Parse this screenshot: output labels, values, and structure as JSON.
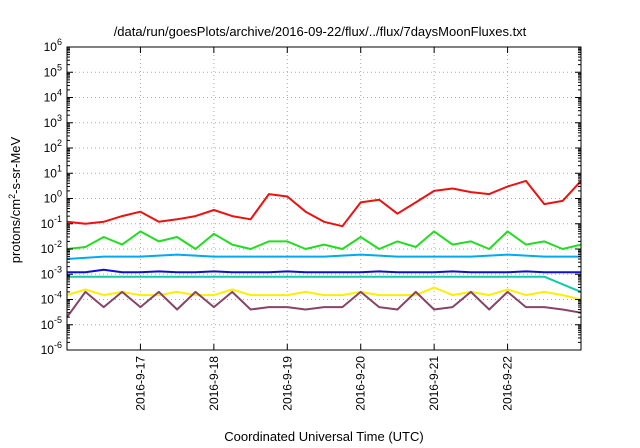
{
  "chart_data": {
    "type": "line",
    "title": "/data/run/goesPlots/archive/2016-09-22/flux/../flux/7daysMoonFluxes.txt",
    "xlabel": "Coordinated Universal Time (UTC)",
    "ylabel_parts": [
      "protons/cm",
      "2",
      "-s-sr-MeV"
    ],
    "yscale": "log",
    "ylim": [
      1e-06,
      1000000.0
    ],
    "y_ticks": [
      {
        "base": "10",
        "exp": "-6"
      },
      {
        "base": "10",
        "exp": "-5"
      },
      {
        "base": "10",
        "exp": "-4"
      },
      {
        "base": "10",
        "exp": "-3"
      },
      {
        "base": "10",
        "exp": "-2"
      },
      {
        "base": "10",
        "exp": "-1"
      },
      {
        "base": "10",
        "exp": "0"
      },
      {
        "base": "10",
        "exp": "1"
      },
      {
        "base": "10",
        "exp": "2"
      },
      {
        "base": "10",
        "exp": "3"
      },
      {
        "base": "10",
        "exp": "4"
      },
      {
        "base": "10",
        "exp": "5"
      },
      {
        "base": "10",
        "exp": "6"
      }
    ],
    "x_ticks": [
      "2016-9-17",
      "2016-9-18",
      "2016-9-19",
      "2016-9-20",
      "2016-9-21",
      "2016-9-22"
    ],
    "xlim": [
      "2016-09-16T00:00",
      "2016-09-23T00:00"
    ],
    "grid": true,
    "series": [
      {
        "color": "#ee1111",
        "x": [
          "2016-09-16T00:00",
          "2016-09-16T06:00",
          "2016-09-16T12:00",
          "2016-09-16T18:00",
          "2016-09-17T00:00",
          "2016-09-17T06:00",
          "2016-09-17T12:00",
          "2016-09-17T18:00",
          "2016-09-18T00:00",
          "2016-09-18T06:00",
          "2016-09-18T12:00",
          "2016-09-18T18:00",
          "2016-09-19T00:00",
          "2016-09-19T06:00",
          "2016-09-19T12:00",
          "2016-09-19T18:00",
          "2016-09-20T00:00",
          "2016-09-20T06:00",
          "2016-09-20T12:00",
          "2016-09-20T18:00",
          "2016-09-21T00:00",
          "2016-09-21T06:00",
          "2016-09-21T12:00",
          "2016-09-21T18:00",
          "2016-09-22T00:00",
          "2016-09-22T06:00",
          "2016-09-22T12:00",
          "2016-09-22T18:00",
          "2016-09-23T00:00"
        ],
        "values": [
          0.12,
          0.1,
          0.12,
          0.2,
          0.3,
          0.12,
          0.15,
          0.2,
          0.35,
          0.2,
          0.15,
          1.5,
          1.2,
          0.3,
          0.12,
          0.08,
          0.7,
          0.9,
          0.25,
          0.7,
          2.0,
          2.5,
          1.8,
          1.5,
          3.0,
          5.0,
          0.6,
          0.8,
          5.0
        ]
      },
      {
        "color": "#22dd22",
        "x": [
          "2016-09-16T00:00",
          "2016-09-16T06:00",
          "2016-09-16T12:00",
          "2016-09-16T18:00",
          "2016-09-17T00:00",
          "2016-09-17T06:00",
          "2016-09-17T12:00",
          "2016-09-17T18:00",
          "2016-09-18T00:00",
          "2016-09-18T06:00",
          "2016-09-18T12:00",
          "2016-09-18T18:00",
          "2016-09-19T00:00",
          "2016-09-19T06:00",
          "2016-09-19T12:00",
          "2016-09-19T18:00",
          "2016-09-20T00:00",
          "2016-09-20T06:00",
          "2016-09-20T12:00",
          "2016-09-20T18:00",
          "2016-09-21T00:00",
          "2016-09-21T06:00",
          "2016-09-21T12:00",
          "2016-09-21T18:00",
          "2016-09-22T00:00",
          "2016-09-22T06:00",
          "2016-09-22T12:00",
          "2016-09-22T18:00",
          "2016-09-23T00:00"
        ],
        "values": [
          0.01,
          0.012,
          0.03,
          0.015,
          0.05,
          0.02,
          0.03,
          0.01,
          0.04,
          0.015,
          0.01,
          0.02,
          0.02,
          0.01,
          0.015,
          0.01,
          0.03,
          0.01,
          0.02,
          0.012,
          0.05,
          0.015,
          0.02,
          0.01,
          0.05,
          0.015,
          0.02,
          0.01,
          0.015
        ]
      },
      {
        "color": "#00aaee",
        "x": [
          "2016-09-16T00:00",
          "2016-09-16T12:00",
          "2016-09-17T00:00",
          "2016-09-17T12:00",
          "2016-09-18T00:00",
          "2016-09-18T12:00",
          "2016-09-19T00:00",
          "2016-09-19T12:00",
          "2016-09-20T00:00",
          "2016-09-20T12:00",
          "2016-09-21T00:00",
          "2016-09-21T12:00",
          "2016-09-22T00:00",
          "2016-09-22T12:00",
          "2016-09-23T00:00"
        ],
        "values": [
          0.004,
          0.005,
          0.005,
          0.006,
          0.005,
          0.005,
          0.005,
          0.005,
          0.006,
          0.005,
          0.005,
          0.005,
          0.006,
          0.005,
          0.005
        ]
      },
      {
        "color": "#1111cc",
        "x": [
          "2016-09-16T00:00",
          "2016-09-16T06:00",
          "2016-09-16T12:00",
          "2016-09-16T18:00",
          "2016-09-17T00:00",
          "2016-09-17T06:00",
          "2016-09-17T12:00",
          "2016-09-17T18:00",
          "2016-09-18T00:00",
          "2016-09-18T06:00",
          "2016-09-18T12:00",
          "2016-09-18T18:00",
          "2016-09-19T00:00",
          "2016-09-19T06:00",
          "2016-09-19T12:00",
          "2016-09-19T18:00",
          "2016-09-20T00:00",
          "2016-09-20T06:00",
          "2016-09-20T12:00",
          "2016-09-20T18:00",
          "2016-09-21T00:00",
          "2016-09-21T06:00",
          "2016-09-21T12:00",
          "2016-09-21T18:00",
          "2016-09-22T00:00",
          "2016-09-22T06:00",
          "2016-09-22T12:00",
          "2016-09-22T18:00",
          "2016-09-23T00:00"
        ],
        "values": [
          0.0012,
          0.0012,
          0.0015,
          0.0012,
          0.0012,
          0.0013,
          0.0012,
          0.0012,
          0.0013,
          0.0012,
          0.0012,
          0.0012,
          0.0013,
          0.0012,
          0.0012,
          0.0012,
          0.0012,
          0.0013,
          0.0012,
          0.0012,
          0.0012,
          0.0013,
          0.0012,
          0.0012,
          0.0012,
          0.0013,
          0.0012,
          0.0012,
          0.0012
        ]
      },
      {
        "color": "#11ccaa",
        "x": [
          "2016-09-16T00:00",
          "2016-09-16T12:00",
          "2016-09-17T00:00",
          "2016-09-17T12:00",
          "2016-09-18T00:00",
          "2016-09-18T12:00",
          "2016-09-19T00:00",
          "2016-09-19T12:00",
          "2016-09-20T00:00",
          "2016-09-20T12:00",
          "2016-09-21T00:00",
          "2016-09-21T12:00",
          "2016-09-22T00:00",
          "2016-09-22T12:00",
          "2016-09-23T00:00"
        ],
        "values": [
          0.0008,
          0.0008,
          0.0008,
          0.0008,
          0.0008,
          0.0008,
          0.0008,
          0.0008,
          0.0008,
          0.0008,
          0.0008,
          0.0008,
          0.0008,
          0.0008,
          0.0002
        ]
      },
      {
        "color": "#ffee00",
        "x": [
          "2016-09-16T00:00",
          "2016-09-16T06:00",
          "2016-09-16T12:00",
          "2016-09-16T18:00",
          "2016-09-17T00:00",
          "2016-09-17T06:00",
          "2016-09-17T12:00",
          "2016-09-17T18:00",
          "2016-09-18T00:00",
          "2016-09-18T06:00",
          "2016-09-18T12:00",
          "2016-09-18T18:00",
          "2016-09-19T00:00",
          "2016-09-19T06:00",
          "2016-09-19T12:00",
          "2016-09-19T18:00",
          "2016-09-20T00:00",
          "2016-09-20T06:00",
          "2016-09-20T12:00",
          "2016-09-20T18:00",
          "2016-09-21T00:00",
          "2016-09-21T06:00",
          "2016-09-21T12:00",
          "2016-09-21T18:00",
          "2016-09-22T00:00",
          "2016-09-22T06:00",
          "2016-09-22T12:00",
          "2016-09-22T18:00",
          "2016-09-23T00:00"
        ],
        "values": [
          0.00015,
          0.00025,
          0.00015,
          0.0002,
          0.00015,
          0.00015,
          0.0002,
          0.00015,
          0.00015,
          0.00025,
          0.00015,
          0.00015,
          0.00015,
          0.0002,
          0.00015,
          0.00015,
          0.0002,
          0.00015,
          0.00015,
          0.00015,
          0.0003,
          0.00015,
          0.0002,
          0.00015,
          0.00025,
          0.00015,
          0.0002,
          0.00015,
          0.0001
        ]
      },
      {
        "color": "#884466",
        "x": [
          "2016-09-16T00:00",
          "2016-09-16T06:00",
          "2016-09-16T12:00",
          "2016-09-16T18:00",
          "2016-09-17T00:00",
          "2016-09-17T06:00",
          "2016-09-17T12:00",
          "2016-09-17T18:00",
          "2016-09-18T00:00",
          "2016-09-18T06:00",
          "2016-09-18T12:00",
          "2016-09-18T18:00",
          "2016-09-19T00:00",
          "2016-09-19T06:00",
          "2016-09-19T12:00",
          "2016-09-19T18:00",
          "2016-09-20T00:00",
          "2016-09-20T06:00",
          "2016-09-20T12:00",
          "2016-09-20T18:00",
          "2016-09-21T00:00",
          "2016-09-21T06:00",
          "2016-09-21T12:00",
          "2016-09-21T18:00",
          "2016-09-22T00:00",
          "2016-09-22T06:00",
          "2016-09-22T12:00",
          "2016-09-22T18:00",
          "2016-09-23T00:00"
        ],
        "values": [
          2e-05,
          0.0002,
          5e-05,
          0.0002,
          5e-05,
          0.0002,
          4e-05,
          0.0002,
          5e-05,
          0.0002,
          4e-05,
          5e-05,
          5e-05,
          4e-05,
          5e-05,
          5e-05,
          0.0002,
          5e-05,
          4e-05,
          0.0002,
          4e-05,
          5e-05,
          0.0002,
          4e-05,
          0.0002,
          5e-05,
          5e-05,
          4e-05,
          3e-05
        ]
      }
    ]
  }
}
